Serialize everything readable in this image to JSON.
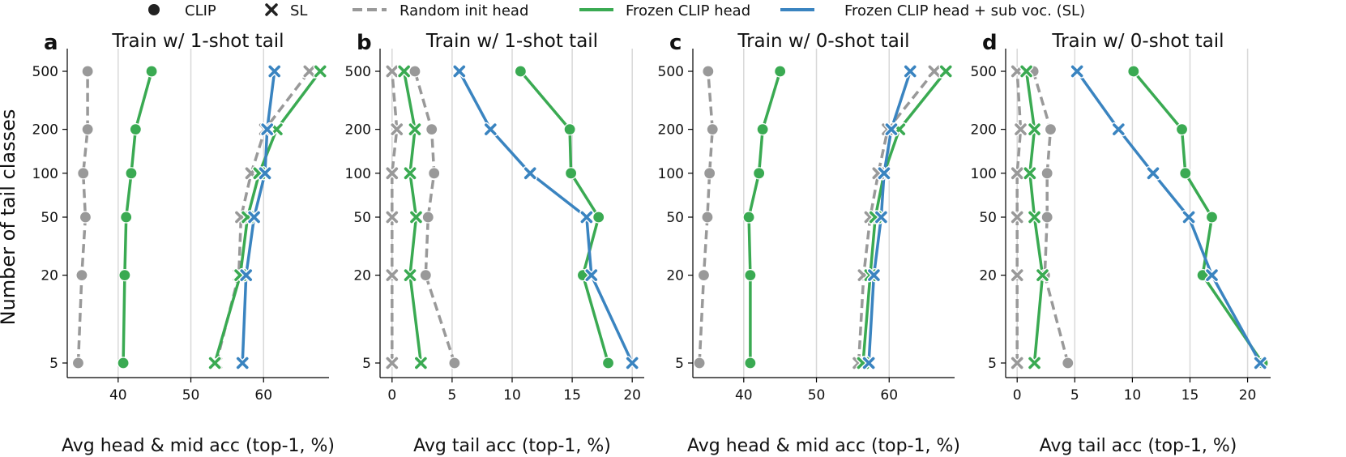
{
  "legend": {
    "items": [
      {
        "label": "CLIP",
        "kind": "marker-circle"
      },
      {
        "label": "SL",
        "kind": "marker-x"
      },
      {
        "label": "Random init head",
        "kind": "line-dashed",
        "color": "#999999"
      },
      {
        "label": "Frozen CLIP head",
        "kind": "line-solid",
        "color": "#3aaa52"
      },
      {
        "label": "Frozen CLIP head + sub voc. (SL)",
        "kind": "line-solid",
        "color": "#3a84c0"
      }
    ]
  },
  "ylabel": "Number of tail classes",
  "colors": {
    "random": "#999999",
    "frozen": "#3aaa52",
    "subvoc": "#3a84c0",
    "grid": "#d8d8d8"
  },
  "chart_data": [
    {
      "type": "line",
      "letter": "a",
      "title": "Train w/ 1-shot tail",
      "xlabel": "Avg head & mid acc (top-1, %)",
      "xlim": [
        33,
        69
      ],
      "xticks": [
        40,
        50,
        60
      ],
      "y": [
        5,
        20,
        50,
        100,
        200,
        500
      ],
      "yscale": "log",
      "series": [
        {
          "style": "random",
          "marker": "circle",
          "values": [
            34.5,
            35,
            35.5,
            35.2,
            35.8,
            35.8
          ]
        },
        {
          "style": "frozen",
          "marker": "circle",
          "values": [
            40.7,
            40.9,
            41.1,
            41.8,
            42.4,
            44.6
          ]
        },
        {
          "style": "random",
          "marker": "x",
          "values": [
            53.5,
            56.6,
            56.9,
            58.3,
            60.2,
            66.3
          ]
        },
        {
          "style": "frozen",
          "marker": "x",
          "values": [
            53.3,
            56.8,
            57.8,
            59.4,
            61.8,
            67.8
          ]
        },
        {
          "style": "subvoc",
          "marker": "x",
          "values": [
            57.1,
            57.6,
            58.7,
            60.2,
            60.5,
            61.5
          ]
        }
      ]
    },
    {
      "type": "line",
      "letter": "b",
      "title": "Train w/ 1-shot tail",
      "xlabel": "Avg tail acc (top-1, %)",
      "xlim": [
        -1,
        21
      ],
      "xticks": [
        0,
        5,
        10,
        15,
        20
      ],
      "y": [
        5,
        20,
        50,
        100,
        200,
        500
      ],
      "yscale": "log",
      "series": [
        {
          "style": "random",
          "marker": "circle",
          "values": [
            5.2,
            2.8,
            3.0,
            3.5,
            3.3,
            1.9
          ]
        },
        {
          "style": "frozen",
          "marker": "circle",
          "values": [
            18.0,
            15.9,
            17.2,
            14.9,
            14.8,
            10.7
          ]
        },
        {
          "style": "random",
          "marker": "x",
          "values": [
            0.0,
            0.0,
            0.0,
            0.0,
            0.4,
            0.0
          ]
        },
        {
          "style": "frozen",
          "marker": "x",
          "values": [
            2.4,
            1.5,
            2.0,
            1.5,
            1.9,
            1.0
          ]
        },
        {
          "style": "subvoc",
          "marker": "x",
          "values": [
            20.0,
            16.6,
            16.2,
            11.5,
            8.2,
            5.6
          ]
        }
      ]
    },
    {
      "type": "line",
      "letter": "c",
      "title": "Train w/ 0-shot tail",
      "xlabel": "Avg head & mid acc (top-1, %)",
      "xlim": [
        33,
        69
      ],
      "xticks": [
        40,
        50,
        60
      ],
      "y": [
        5,
        20,
        50,
        100,
        200,
        500
      ],
      "yscale": "log",
      "series": [
        {
          "style": "random",
          "marker": "circle",
          "values": [
            33.9,
            34.5,
            35.0,
            35.3,
            35.7,
            35.1
          ]
        },
        {
          "style": "frozen",
          "marker": "circle",
          "values": [
            40.9,
            40.9,
            40.7,
            42.1,
            42.6,
            45.0
          ]
        },
        {
          "style": "random",
          "marker": "x",
          "values": [
            55.8,
            56.5,
            57.4,
            58.5,
            59.8,
            66.2
          ]
        },
        {
          "style": "frozen",
          "marker": "x",
          "values": [
            56.4,
            57.4,
            58.1,
            59.3,
            61.4,
            67.8
          ]
        },
        {
          "style": "subvoc",
          "marker": "x",
          "values": [
            57.2,
            57.9,
            58.9,
            59.3,
            60.3,
            62.9
          ]
        }
      ]
    },
    {
      "type": "line",
      "letter": "d",
      "title": "Train w/ 0-shot tail",
      "xlabel": "Avg tail acc (top-1, %)",
      "xlim": [
        -1,
        22
      ],
      "xticks": [
        0,
        5,
        10,
        15,
        20
      ],
      "y": [
        5,
        20,
        50,
        100,
        200,
        500
      ],
      "yscale": "log",
      "series": [
        {
          "style": "random",
          "marker": "circle",
          "values": [
            4.4,
            2.4,
            2.6,
            2.6,
            2.9,
            1.4
          ]
        },
        {
          "style": "frozen",
          "marker": "circle",
          "values": [
            21.3,
            16.1,
            16.9,
            14.6,
            14.3,
            10.1
          ]
        },
        {
          "style": "random",
          "marker": "x",
          "values": [
            0.0,
            0.0,
            0.0,
            0.0,
            0.3,
            0.0
          ]
        },
        {
          "style": "frozen",
          "marker": "x",
          "values": [
            1.5,
            2.2,
            1.5,
            1.1,
            1.5,
            0.8
          ]
        },
        {
          "style": "subvoc",
          "marker": "x",
          "values": [
            21.1,
            16.9,
            14.9,
            11.8,
            8.8,
            5.2
          ]
        }
      ]
    }
  ]
}
